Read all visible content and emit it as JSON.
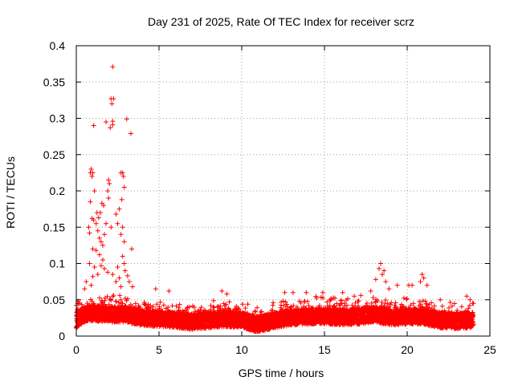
{
  "chart_data": {
    "type": "scatter",
    "title": "Day 231 of 2025, Rate Of TEC Index for receiver scrz",
    "xlabel": "GPS time / hours",
    "ylabel": "ROTI / TECUs",
    "xlim": [
      0,
      25
    ],
    "ylim": [
      0,
      0.4
    ],
    "x_ticks": [
      0,
      5,
      10,
      15,
      20,
      25
    ],
    "x_tick_labels": [
      "0",
      "5",
      "10",
      "15",
      "20",
      "25"
    ],
    "y_ticks": [
      0,
      0.05,
      0.1,
      0.15,
      0.2,
      0.25,
      0.3,
      0.35,
      0.4
    ],
    "y_tick_labels": [
      "0",
      "0.05",
      "0.1",
      "0.15",
      "0.2",
      "0.25",
      "0.3",
      "0.35",
      "0.4"
    ],
    "grid": true,
    "marker": "+",
    "marker_color": "#ff0000",
    "series": [
      {
        "name": "ROTI",
        "baseline_profile": [
          [
            0.0,
            0.022
          ],
          [
            0.5,
            0.03
          ],
          [
            1.0,
            0.032
          ],
          [
            2.0,
            0.03
          ],
          [
            3.0,
            0.03
          ],
          [
            4.0,
            0.025
          ],
          [
            5.0,
            0.024
          ],
          [
            6.0,
            0.022
          ],
          [
            7.0,
            0.02
          ],
          [
            8.0,
            0.022
          ],
          [
            9.0,
            0.024
          ],
          [
            10.0,
            0.022
          ],
          [
            11.0,
            0.016
          ],
          [
            12.0,
            0.022
          ],
          [
            13.0,
            0.026
          ],
          [
            14.0,
            0.027
          ],
          [
            15.0,
            0.028
          ],
          [
            16.0,
            0.026
          ],
          [
            17.0,
            0.027
          ],
          [
            18.0,
            0.03
          ],
          [
            19.0,
            0.026
          ],
          [
            20.0,
            0.027
          ],
          [
            21.0,
            0.027
          ],
          [
            22.0,
            0.022
          ],
          [
            23.0,
            0.021
          ],
          [
            24.0,
            0.022
          ]
        ],
        "points": [
          [
            2.2,
            0.371
          ],
          [
            2.1,
            0.327
          ],
          [
            2.25,
            0.327
          ],
          [
            2.15,
            0.32
          ],
          [
            1.05,
            0.29
          ],
          [
            1.8,
            0.295
          ],
          [
            2.2,
            0.296
          ],
          [
            2.2,
            0.291
          ],
          [
            3.05,
            0.299
          ],
          [
            2.05,
            0.287
          ],
          [
            3.3,
            0.279
          ],
          [
            0.85,
            0.225
          ],
          [
            0.9,
            0.23
          ],
          [
            0.95,
            0.22
          ],
          [
            1.0,
            0.225
          ],
          [
            1.1,
            0.2
          ],
          [
            2.7,
            0.225
          ],
          [
            2.8,
            0.225
          ],
          [
            2.85,
            0.22
          ],
          [
            1.95,
            0.215
          ],
          [
            2.0,
            0.21
          ],
          [
            1.9,
            0.2
          ],
          [
            1.95,
            0.19
          ],
          [
            2.9,
            0.205
          ],
          [
            2.75,
            0.188
          ],
          [
            2.4,
            0.168
          ],
          [
            2.6,
            0.175
          ],
          [
            0.85,
            0.185
          ],
          [
            0.95,
            0.162
          ],
          [
            1.05,
            0.16
          ],
          [
            1.25,
            0.17
          ],
          [
            1.35,
            0.163
          ],
          [
            1.45,
            0.17
          ],
          [
            1.55,
            0.183
          ],
          [
            1.65,
            0.18
          ],
          [
            0.75,
            0.15
          ],
          [
            0.8,
            0.142
          ],
          [
            1.2,
            0.155
          ],
          [
            1.3,
            0.145
          ],
          [
            1.4,
            0.135
          ],
          [
            1.5,
            0.13
          ],
          [
            1.6,
            0.125
          ],
          [
            1.7,
            0.14
          ],
          [
            1.8,
            0.155
          ],
          [
            2.1,
            0.15
          ],
          [
            2.5,
            0.155
          ],
          [
            2.7,
            0.14
          ],
          [
            2.8,
            0.15
          ],
          [
            2.9,
            0.13
          ],
          [
            1.0,
            0.12
          ],
          [
            1.2,
            0.118
          ],
          [
            1.4,
            0.112
          ],
          [
            1.6,
            0.105
          ],
          [
            3.35,
            0.12
          ],
          [
            2.8,
            0.11
          ],
          [
            2.9,
            0.1
          ],
          [
            2.95,
            0.09
          ],
          [
            0.8,
            0.1
          ],
          [
            1.1,
            0.095
          ],
          [
            1.3,
            0.085
          ],
          [
            1.5,
            0.097
          ],
          [
            1.7,
            0.093
          ],
          [
            1.9,
            0.088
          ],
          [
            2.2,
            0.085
          ],
          [
            2.5,
            0.095
          ],
          [
            2.6,
            0.08
          ],
          [
            3.1,
            0.083
          ],
          [
            3.2,
            0.075
          ],
          [
            3.4,
            0.068
          ],
          [
            0.5,
            0.065
          ],
          [
            0.6,
            0.075
          ],
          [
            0.9,
            0.07
          ],
          [
            1.0,
            0.082
          ],
          [
            2.4,
            0.075
          ],
          [
            2.7,
            0.068
          ],
          [
            0.2,
            0.045
          ],
          [
            0.1,
            0.048
          ],
          [
            4.8,
            0.065
          ],
          [
            5.6,
            0.062
          ],
          [
            8.8,
            0.062
          ],
          [
            9.1,
            0.058
          ],
          [
            12.6,
            0.06
          ],
          [
            13.1,
            0.06
          ],
          [
            13.9,
            0.06
          ],
          [
            14.9,
            0.06
          ],
          [
            16.1,
            0.06
          ],
          [
            16.8,
            0.055
          ],
          [
            17.2,
            0.056
          ],
          [
            17.8,
            0.062
          ],
          [
            18.1,
            0.078
          ],
          [
            18.3,
            0.093
          ],
          [
            18.4,
            0.1
          ],
          [
            18.5,
            0.085
          ],
          [
            18.6,
            0.09
          ],
          [
            18.7,
            0.075
          ],
          [
            18.9,
            0.065
          ],
          [
            19.4,
            0.07
          ],
          [
            20.1,
            0.07
          ],
          [
            20.3,
            0.07
          ],
          [
            20.8,
            0.075
          ],
          [
            20.9,
            0.085
          ],
          [
            21.0,
            0.08
          ],
          [
            21.2,
            0.07
          ],
          [
            22.0,
            0.05
          ],
          [
            23.6,
            0.055
          ],
          [
            23.8,
            0.05
          ],
          [
            24.0,
            0.045
          ]
        ]
      }
    ]
  }
}
